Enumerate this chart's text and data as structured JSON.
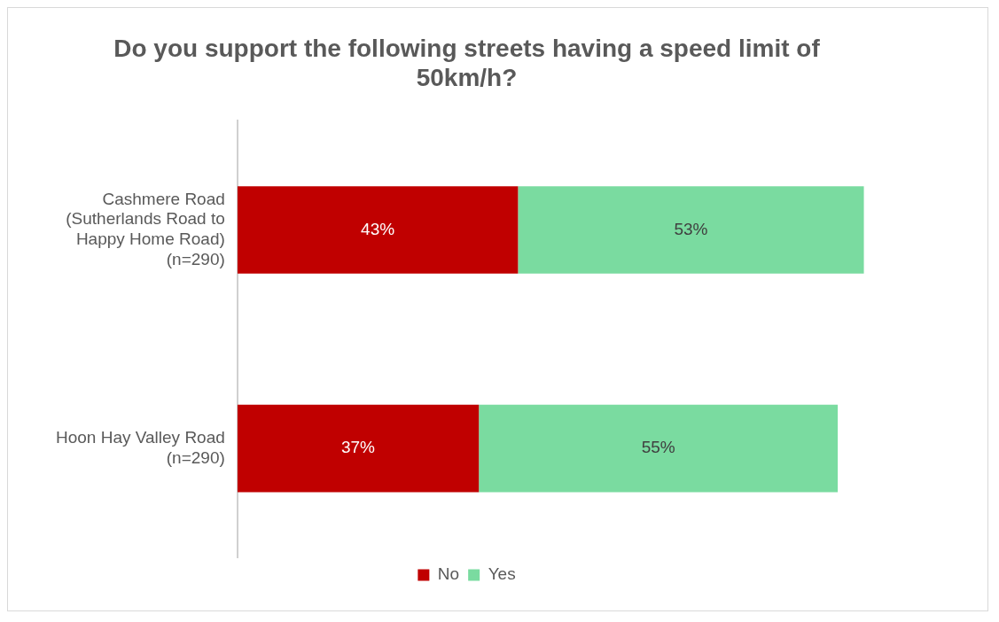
{
  "chart_data": {
    "type": "bar",
    "title": "Do you support the following streets having a speed limit of 50km/h?",
    "orientation": "horizontal",
    "stacked": true,
    "categories": [
      "Cashmere Road (Sutherlands Road to Happy Home Road) (n=290)",
      "Hoon Hay Valley Road (n=290)"
    ],
    "series": [
      {
        "name": "No",
        "color": "#c00000",
        "values": [
          43,
          37
        ],
        "value_labels": [
          "43%",
          "37%"
        ]
      },
      {
        "name": "Yes",
        "color": "#7adba0",
        "values": [
          53,
          55
        ],
        "value_labels": [
          "53%",
          "55%"
        ]
      }
    ],
    "tick_labels": "y",
    "grid": false,
    "legend": "bottom"
  }
}
